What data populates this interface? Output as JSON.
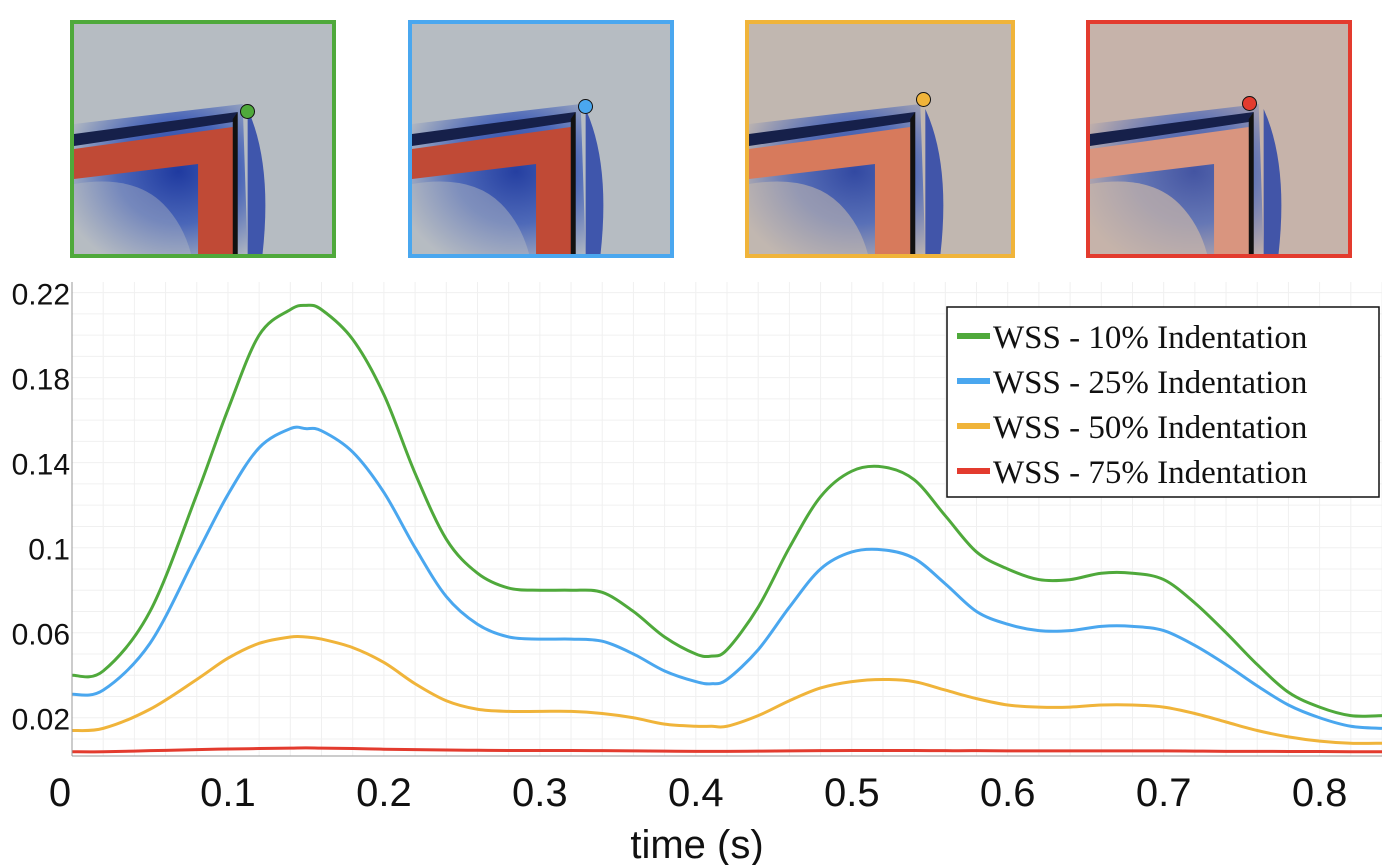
{
  "panels": [
    {
      "name": "10%",
      "color": "#4fa93b",
      "fill_level": 1.0
    },
    {
      "name": "25%",
      "color": "#4aa7ef",
      "fill_level": 0.9
    },
    {
      "name": "50%",
      "color": "#f0b43a",
      "fill_level": 0.7
    },
    {
      "name": "75%",
      "color": "#e33b2e",
      "fill_level": 0.45
    }
  ],
  "chart_data": {
    "type": "line",
    "title": "",
    "xlabel": "time (s)",
    "ylabel": "",
    "xlim": [
      0,
      0.84
    ],
    "ylim": [
      0.002,
      0.225
    ],
    "x_ticks": [
      "0",
      "0.1",
      "0.2",
      "0.3",
      "0.4",
      "0.5",
      "0.6",
      "0.7",
      "0.8"
    ],
    "y_ticks": [
      "0.02",
      "0.06",
      "0.1",
      "0.14",
      "0.18",
      "0.22"
    ],
    "grid": true,
    "legend_position": "top-right",
    "x": [
      0,
      0.02,
      0.05,
      0.08,
      0.1,
      0.12,
      0.14,
      0.15,
      0.16,
      0.18,
      0.2,
      0.22,
      0.24,
      0.26,
      0.28,
      0.3,
      0.32,
      0.34,
      0.36,
      0.38,
      0.4,
      0.41,
      0.42,
      0.44,
      0.46,
      0.48,
      0.5,
      0.52,
      0.54,
      0.56,
      0.58,
      0.6,
      0.62,
      0.64,
      0.66,
      0.68,
      0.7,
      0.72,
      0.74,
      0.76,
      0.78,
      0.8,
      0.82,
      0.84
    ],
    "series": [
      {
        "name": "WSS - 10% Indentation",
        "color": "#4fa93b",
        "values": [
          0.04,
          0.042,
          0.07,
          0.125,
          0.165,
          0.2,
          0.212,
          0.214,
          0.212,
          0.198,
          0.172,
          0.135,
          0.104,
          0.088,
          0.081,
          0.08,
          0.08,
          0.079,
          0.07,
          0.058,
          0.05,
          0.049,
          0.052,
          0.072,
          0.1,
          0.124,
          0.136,
          0.138,
          0.132,
          0.115,
          0.098,
          0.09,
          0.085,
          0.085,
          0.088,
          0.088,
          0.085,
          0.074,
          0.06,
          0.045,
          0.032,
          0.025,
          0.021,
          0.021
        ]
      },
      {
        "name": "WSS - 25% Indentation",
        "color": "#4aa7ef",
        "values": [
          0.031,
          0.033,
          0.055,
          0.097,
          0.125,
          0.147,
          0.156,
          0.156,
          0.155,
          0.145,
          0.126,
          0.1,
          0.077,
          0.064,
          0.058,
          0.057,
          0.057,
          0.056,
          0.05,
          0.042,
          0.037,
          0.036,
          0.038,
          0.052,
          0.072,
          0.09,
          0.098,
          0.099,
          0.095,
          0.083,
          0.07,
          0.064,
          0.061,
          0.061,
          0.063,
          0.063,
          0.061,
          0.054,
          0.045,
          0.035,
          0.026,
          0.02,
          0.016,
          0.015
        ]
      },
      {
        "name": "WSS - 50% Indentation",
        "color": "#f0b43a",
        "values": [
          0.014,
          0.015,
          0.024,
          0.038,
          0.048,
          0.055,
          0.058,
          0.058,
          0.057,
          0.053,
          0.046,
          0.036,
          0.028,
          0.024,
          0.023,
          0.023,
          0.023,
          0.022,
          0.02,
          0.017,
          0.016,
          0.016,
          0.016,
          0.021,
          0.028,
          0.034,
          0.037,
          0.038,
          0.037,
          0.033,
          0.029,
          0.026,
          0.025,
          0.025,
          0.026,
          0.026,
          0.025,
          0.022,
          0.018,
          0.014,
          0.011,
          0.009,
          0.008,
          0.008
        ]
      },
      {
        "name": "WSS - 75% Indentation",
        "color": "#e33b2e",
        "values": [
          0.004,
          0.004,
          0.0045,
          0.005,
          0.0053,
          0.0055,
          0.0057,
          0.0058,
          0.0057,
          0.0055,
          0.0052,
          0.005,
          0.0048,
          0.0047,
          0.0046,
          0.0046,
          0.0046,
          0.0045,
          0.0044,
          0.0043,
          0.0042,
          0.0042,
          0.0042,
          0.0043,
          0.0044,
          0.0045,
          0.0046,
          0.0046,
          0.0046,
          0.0045,
          0.0045,
          0.0044,
          0.0044,
          0.0044,
          0.0044,
          0.0044,
          0.0044,
          0.0043,
          0.0042,
          0.0042,
          0.0041,
          0.0041,
          0.004,
          0.004
        ]
      }
    ]
  }
}
